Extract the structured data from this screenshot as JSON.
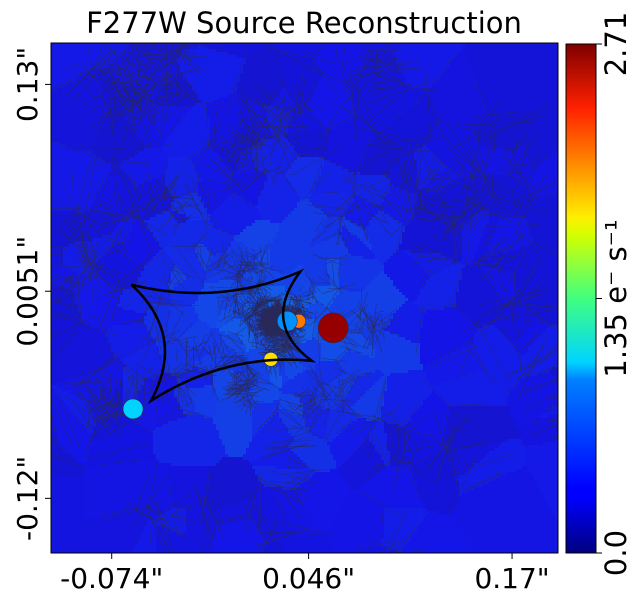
{
  "chart_data": {
    "type": "heatmap",
    "subtype": "voronoi-mesh source reconstruction",
    "title": "F277W Source Reconstruction",
    "xlabel": "",
    "ylabel": "",
    "x_ticks": [
      "-0.074\"",
      "0.046\"",
      "0.17\""
    ],
    "y_ticks": [
      "0.13\"",
      "0.0051\"",
      "-0.12\""
    ],
    "x_tick_values": [
      -0.074,
      0.046,
      0.17
    ],
    "y_tick_values": [
      0.13,
      0.0051,
      -0.12
    ],
    "xlim": [
      -0.111,
      0.198
    ],
    "ylim": [
      -0.153,
      0.155
    ],
    "colorbar": {
      "label": "1.35 e⁻ s⁻¹",
      "ticks": [
        "0.0",
        "1.35 e⁻ s⁻¹",
        "2.71"
      ],
      "range": [
        0.0,
        2.71
      ],
      "colormap": "jet"
    },
    "background_level": 0.32,
    "features": [
      {
        "kind": "cell",
        "name": "peak",
        "x": 0.061,
        "y": -0.017,
        "value": 2.65
      },
      {
        "kind": "cell",
        "name": "orange-blob",
        "x": 0.04,
        "y": -0.013,
        "value": 2.05
      },
      {
        "kind": "cell",
        "name": "yellow-blob",
        "x": 0.023,
        "y": -0.036,
        "value": 1.78
      },
      {
        "kind": "cell",
        "name": "cyan-cell",
        "x": -0.061,
        "y": -0.066,
        "value": 0.9
      },
      {
        "kind": "cell",
        "name": "light-blue-cell",
        "x": 0.033,
        "y": -0.013,
        "value": 0.72
      }
    ],
    "caustic": {
      "type": "astroid",
      "color": "#000000",
      "vertices": [
        [
          -0.062,
          0.009
        ],
        [
          0.041,
          0.017
        ],
        [
          0.048,
          -0.037
        ],
        [
          -0.05,
          -0.061
        ]
      ]
    },
    "grid": false
  }
}
